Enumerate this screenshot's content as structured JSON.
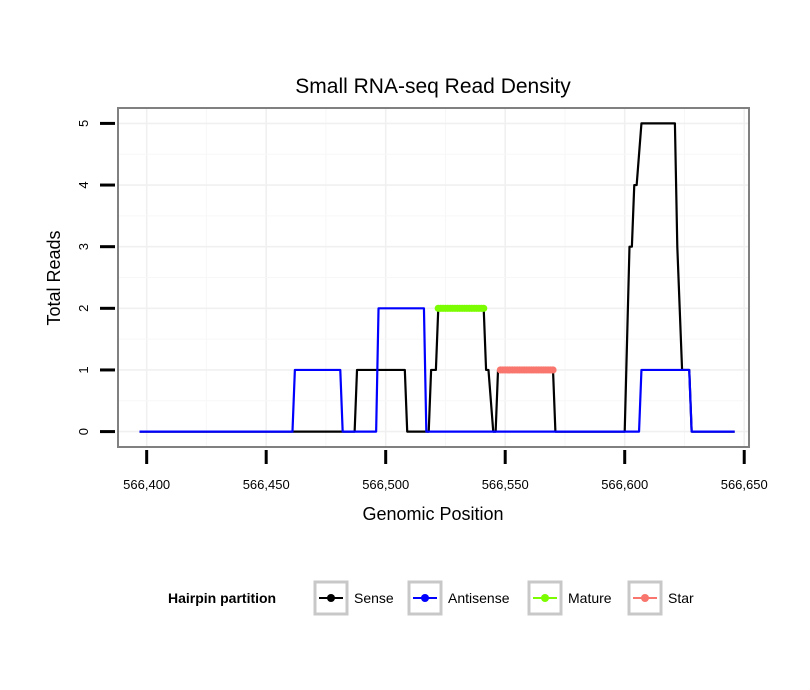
{
  "chart_data": {
    "type": "line",
    "title": "Small RNA-seq Read Density",
    "xlabel": "Genomic Position",
    "ylabel": "Total Reads",
    "xlim": [
      566388,
      566652
    ],
    "ylim": [
      -0.25,
      5.25
    ],
    "x_ticks": [
      566400,
      566450,
      566500,
      566550,
      566600,
      566650
    ],
    "x_tick_labels": [
      "566,400",
      "566,450",
      "566,500",
      "566,550",
      "566,600",
      "566,650"
    ],
    "y_ticks": [
      0,
      1,
      2,
      3,
      4,
      5
    ],
    "y_tick_labels": [
      "0",
      "1",
      "2",
      "3",
      "4",
      "5"
    ],
    "grid": true,
    "legend": {
      "title": "Hairpin partition",
      "position": "bottom",
      "entries": [
        "Sense",
        "Antisense",
        "Mature",
        "Star"
      ]
    },
    "series": [
      {
        "name": "Sense",
        "color": "#000000",
        "style": "line",
        "points": [
          [
            566397,
            0
          ],
          [
            566487,
            0
          ],
          [
            566488,
            1
          ],
          [
            566508,
            1
          ],
          [
            566509,
            0
          ],
          [
            566518,
            0
          ],
          [
            566519,
            1
          ],
          [
            566521,
            1
          ],
          [
            566522,
            2
          ],
          [
            566541,
            2
          ],
          [
            566542,
            1
          ],
          [
            566543,
            1
          ],
          [
            566545,
            0
          ],
          [
            566546,
            0
          ],
          [
            566547,
            1
          ],
          [
            566570,
            1
          ],
          [
            566571,
            0
          ],
          [
            566600,
            0
          ],
          [
            566602,
            3
          ],
          [
            566603,
            3
          ],
          [
            566604,
            4
          ],
          [
            566605,
            4
          ],
          [
            566607,
            5
          ],
          [
            566621,
            5
          ],
          [
            566622,
            3
          ],
          [
            566623,
            2
          ],
          [
            566624,
            1
          ],
          [
            566627,
            1
          ],
          [
            566628,
            0
          ],
          [
            566646,
            0
          ]
        ]
      },
      {
        "name": "Antisense",
        "color": "#0000ff",
        "style": "line",
        "points": [
          [
            566397,
            0
          ],
          [
            566461,
            0
          ],
          [
            566462,
            1
          ],
          [
            566481,
            1
          ],
          [
            566482,
            0
          ],
          [
            566496,
            0
          ],
          [
            566497,
            2
          ],
          [
            566516,
            2
          ],
          [
            566517,
            0
          ],
          [
            566606,
            0
          ],
          [
            566607,
            1
          ],
          [
            566627,
            1
          ],
          [
            566628,
            0
          ],
          [
            566646,
            0
          ]
        ]
      },
      {
        "name": "Mature",
        "color": "#7cfc00",
        "style": "points",
        "points": [
          [
            566522,
            2
          ],
          [
            566523,
            2
          ],
          [
            566524,
            2
          ],
          [
            566525,
            2
          ],
          [
            566526,
            2
          ],
          [
            566527,
            2
          ],
          [
            566528,
            2
          ],
          [
            566529,
            2
          ],
          [
            566530,
            2
          ],
          [
            566531,
            2
          ],
          [
            566532,
            2
          ],
          [
            566533,
            2
          ],
          [
            566534,
            2
          ],
          [
            566535,
            2
          ],
          [
            566536,
            2
          ],
          [
            566537,
            2
          ],
          [
            566538,
            2
          ],
          [
            566539,
            2
          ],
          [
            566540,
            2
          ],
          [
            566541,
            2
          ]
        ]
      },
      {
        "name": "Star",
        "color": "#f8766d",
        "style": "points",
        "points": [
          [
            566548,
            1
          ],
          [
            566549,
            1
          ],
          [
            566550,
            1
          ],
          [
            566551,
            1
          ],
          [
            566552,
            1
          ],
          [
            566553,
            1
          ],
          [
            566554,
            1
          ],
          [
            566555,
            1
          ],
          [
            566556,
            1
          ],
          [
            566557,
            1
          ],
          [
            566558,
            1
          ],
          [
            566559,
            1
          ],
          [
            566560,
            1
          ],
          [
            566561,
            1
          ],
          [
            566562,
            1
          ],
          [
            566563,
            1
          ],
          [
            566564,
            1
          ],
          [
            566565,
            1
          ],
          [
            566566,
            1
          ],
          [
            566567,
            1
          ],
          [
            566568,
            1
          ],
          [
            566569,
            1
          ],
          [
            566570,
            1
          ]
        ]
      }
    ]
  }
}
